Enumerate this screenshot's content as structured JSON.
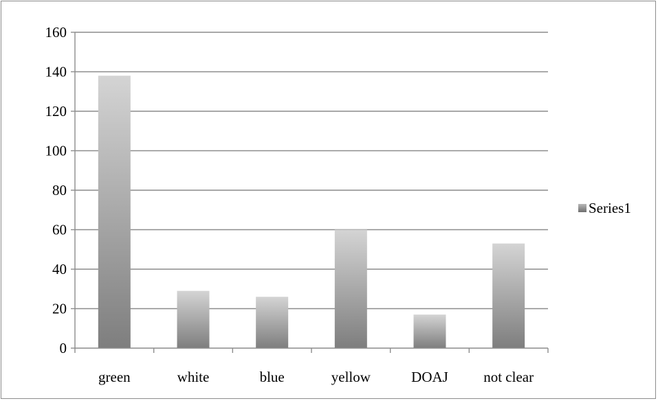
{
  "chart_data": {
    "type": "bar",
    "title": "",
    "xlabel": "",
    "ylabel": "",
    "categories": [
      "green",
      "white",
      "blue",
      "yellow",
      "DOAJ",
      "not clear"
    ],
    "series": [
      {
        "name": "Series1",
        "values": [
          138,
          29,
          26,
          60,
          17,
          53
        ]
      }
    ],
    "ylim": [
      0,
      160
    ],
    "yticks": [
      0,
      20,
      40,
      60,
      80,
      100,
      120,
      140,
      160
    ],
    "ytick_labels": [
      "0",
      "20",
      "40",
      "60",
      "80",
      "100",
      "120",
      "140",
      "160"
    ],
    "grid": true,
    "legend": "right",
    "colors": {
      "bar_light": "#d4d4d4",
      "bar_dark": "#7e7e7e",
      "grid": "#8c8c8c"
    }
  }
}
